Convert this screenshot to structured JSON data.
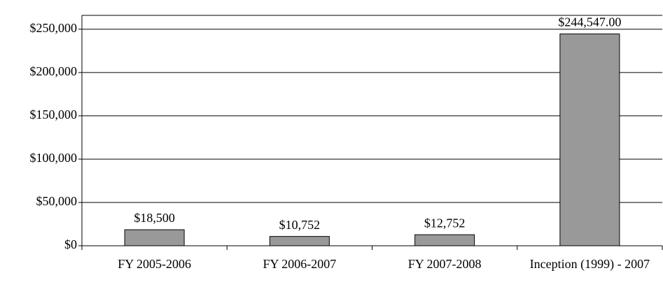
{
  "chart_data": {
    "type": "bar",
    "categories": [
      "FY 2005-2006",
      "FY 2006-2007",
      "FY 2007-2008",
      "Inception (1999) - 2007"
    ],
    "values": [
      18500,
      10752,
      12752,
      244547
    ],
    "value_labels": [
      "$18,500",
      "$10,752",
      "$12,752",
      "$244,547.00"
    ],
    "color": "#999999",
    "ylim": [
      0,
      266000
    ],
    "yticks": [
      {
        "value": 0,
        "label": "$0"
      },
      {
        "value": 50000,
        "label": "$50,000"
      },
      {
        "value": 100000,
        "label": "$100,000"
      },
      {
        "value": 150000,
        "label": "$150,000"
      },
      {
        "value": 200000,
        "label": "$200,000"
      },
      {
        "value": 250000,
        "label": "$250,000"
      }
    ],
    "grid": true
  }
}
